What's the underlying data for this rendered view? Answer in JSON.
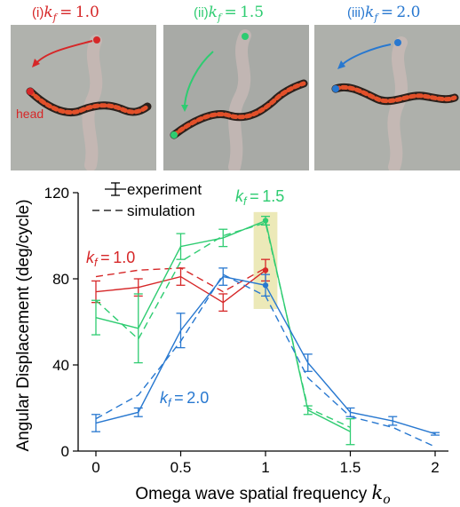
{
  "photos": [
    {
      "prefix": "(i)",
      "kf_text": "k_f = 1.0",
      "color": "#d62728",
      "annotation": "head"
    },
    {
      "prefix": "(ii)",
      "kf_text": "k_f = 1.5",
      "color": "#2ecc71"
    },
    {
      "prefix": "(iii)",
      "kf_text": "k_f = 2.0",
      "color": "#2878d0"
    }
  ],
  "chart_data": {
    "type": "line",
    "xlabel": "Omega wave spatial frequency",
    "xlabel_symbol": "k_o",
    "ylabel": "Angular Displacement (deg/cycle)",
    "xlim": [
      -0.1,
      2.05
    ],
    "ylim": [
      0,
      120
    ],
    "xticks": [
      0,
      0.5,
      1,
      1.5,
      2
    ],
    "xtick_labels": [
      "0",
      "0.5",
      "1",
      "1.5",
      "2"
    ],
    "yticks": [
      0,
      40,
      80,
      120
    ],
    "ytick_labels": [
      "0",
      "40",
      "80",
      "120"
    ],
    "grid": false,
    "legend": {
      "position": "top-left",
      "experiment_label": "experiment",
      "simulation_label": "simulation"
    },
    "highlight": {
      "x_range": [
        0.93,
        1.07
      ],
      "y_range": [
        66,
        111
      ],
      "color": "#ece9b8"
    },
    "series": [
      {
        "name": "k_f = 1.0",
        "annotation_text": "k_f = 1.0",
        "color": "#d62728",
        "experiment": {
          "x": [
            0,
            0.25,
            0.5,
            0.75,
            1
          ],
          "y": [
            74,
            76,
            81,
            69,
            84
          ],
          "err": [
            5,
            4,
            4,
            4,
            5
          ]
        },
        "simulation": {
          "x": [
            0,
            0.25,
            0.5,
            0.75,
            1
          ],
          "y": [
            81,
            84,
            85,
            74,
            85
          ]
        }
      },
      {
        "name": "k_f = 1.5",
        "annotation_text": "k_f = 1.5",
        "color": "#2ecc71",
        "experiment": {
          "x": [
            0,
            0.25,
            0.5,
            0.75,
            1,
            1.25,
            1.5
          ],
          "y": [
            62,
            57,
            95,
            99,
            107,
            19,
            9
          ],
          "err": [
            8,
            16,
            6,
            4,
            2,
            2,
            6
          ]
        },
        "simulation": {
          "x": [
            0,
            0.25,
            0.5,
            0.75,
            1,
            1.25,
            1.5
          ],
          "y": [
            70,
            52,
            88,
            100,
            106,
            20,
            11
          ]
        }
      },
      {
        "name": "k_f = 2.0",
        "annotation_text": "k_f = 2.0",
        "color": "#2878d0",
        "experiment": {
          "x": [
            0,
            0.25,
            0.5,
            0.75,
            1,
            1.25,
            1.5,
            1.75,
            2
          ],
          "y": [
            13,
            18,
            56,
            81,
            77,
            41,
            18,
            14,
            8
          ],
          "err": [
            4,
            2,
            8,
            4,
            5,
            4,
            2,
            2,
            0.6
          ]
        },
        "simulation": {
          "x": [
            0,
            0.25,
            0.5,
            0.75,
            1,
            1.25,
            1.5,
            1.75,
            2
          ],
          "y": [
            15,
            26,
            51,
            82,
            72,
            34,
            16,
            11,
            2
          ]
        }
      }
    ]
  }
}
